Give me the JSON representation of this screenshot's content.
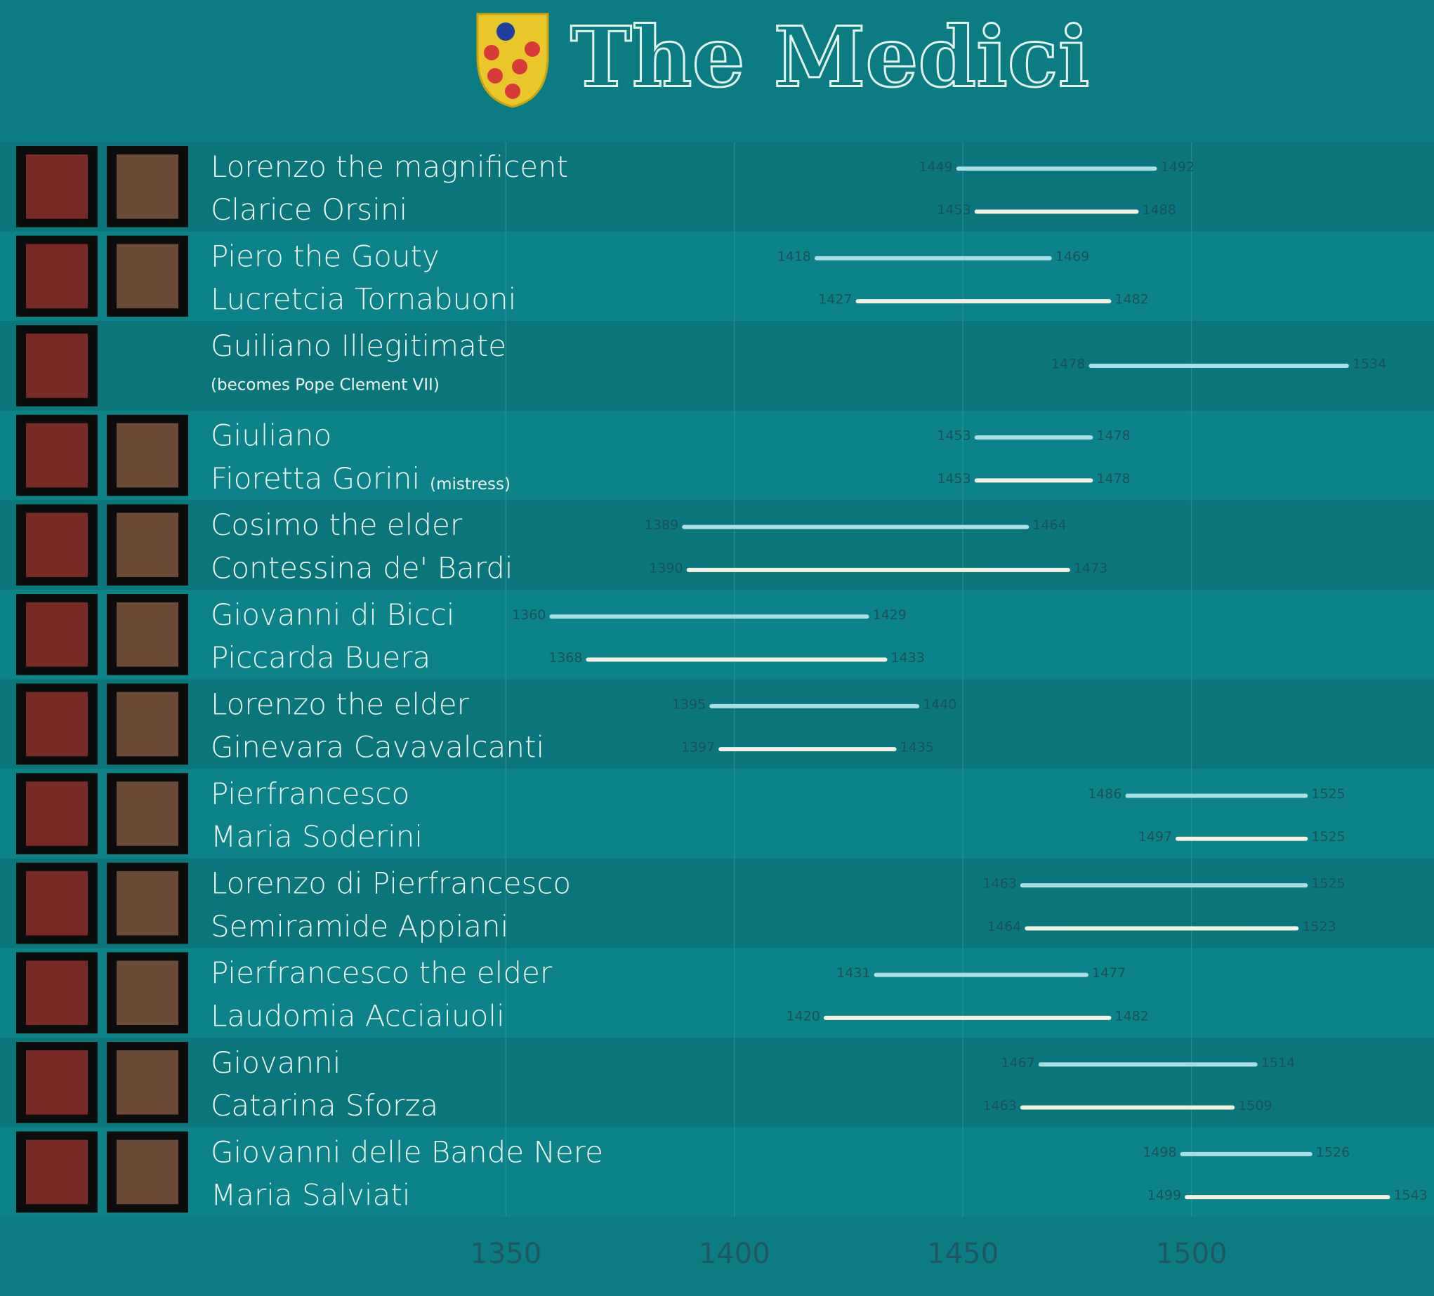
{
  "chart_data": {
    "type": "timeline",
    "title": "The Medici",
    "xlim": [
      1310,
      1550
    ],
    "xticks": [
      1350,
      1400,
      1450,
      1500
    ],
    "colors": [
      "#a9dee3",
      "#f4f2e2"
    ],
    "rows": [
      {
        "people": [
          {
            "name": "Lorenzo the magnificent",
            "values": [
              1449,
              1492
            ]
          },
          {
            "name": "Clarice Orsini",
            "values": [
              1453,
              1488
            ]
          }
        ]
      },
      {
        "people": [
          {
            "name": "Piero the Gouty",
            "values": [
              1418,
              1469
            ]
          },
          {
            "name": "Lucretcia Tornabuoni",
            "values": [
              1427,
              1482
            ]
          }
        ]
      },
      {
        "people": [
          {
            "name": "Guiliano Illegitimate",
            "note": "(becomes Pope Clement VII)",
            "values": [
              1478,
              1534
            ]
          }
        ]
      },
      {
        "people": [
          {
            "name": "Giuliano",
            "values": [
              1453,
              1478
            ]
          },
          {
            "name": "Fioretta Gorini",
            "note": "(mistress)",
            "values": [
              1453,
              1478
            ]
          }
        ]
      },
      {
        "people": [
          {
            "name": "Cosimo the elder",
            "values": [
              1389,
              1464
            ]
          },
          {
            "name": "Contessina de' Bardi",
            "values": [
              1390,
              1473
            ]
          }
        ]
      },
      {
        "people": [
          {
            "name": "Giovanni di Bicci",
            "values": [
              1360,
              1429
            ]
          },
          {
            "name": "Piccarda Buera",
            "values": [
              1368,
              1433
            ]
          }
        ]
      },
      {
        "people": [
          {
            "name": "Lorenzo the elder",
            "values": [
              1395,
              1440
            ]
          },
          {
            "name": "Ginevara Cavavalcanti",
            "values": [
              1397,
              1435
            ]
          }
        ]
      },
      {
        "people": [
          {
            "name": "Pierfrancesco",
            "values": [
              1486,
              1525
            ]
          },
          {
            "name": "Maria Soderini",
            "values": [
              1497,
              1525
            ]
          }
        ]
      },
      {
        "people": [
          {
            "name": "Lorenzo di Pierfrancesco",
            "values": [
              1463,
              1525
            ]
          },
          {
            "name": "Semiramide Appiani",
            "values": [
              1464,
              1523
            ]
          }
        ]
      },
      {
        "people": [
          {
            "name": "Pierfrancesco the elder",
            "values": [
              1431,
              1477
            ]
          },
          {
            "name": "Laudomia Acciaiuoli",
            "values": [
              1420,
              1482
            ]
          }
        ]
      },
      {
        "people": [
          {
            "name": "Giovanni",
            "values": [
              1467,
              1514
            ]
          },
          {
            "name": "Catarina Sforza",
            "values": [
              1463,
              1509
            ]
          }
        ]
      },
      {
        "people": [
          {
            "name": "Giovanni delle Bande Nere",
            "values": [
              1498,
              1526
            ]
          },
          {
            "name": "Maria Salviati",
            "values": [
              1499,
              1543
            ]
          }
        ]
      }
    ]
  }
}
